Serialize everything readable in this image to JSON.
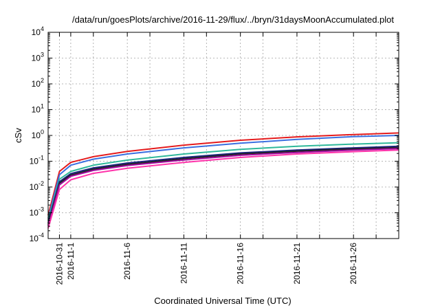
{
  "chart_data": {
    "type": "line",
    "title": "/data/run/goesPlots/archive/2016-11-29/flux/../bryn/31daysMoonAccumulated.plot",
    "xlabel": "Coordinated Universal Time (UTC)",
    "ylabel": "cSv",
    "y_scale": "log",
    "ylim": [
      0.0001,
      10000
    ],
    "xlim": [
      "2016-10-30",
      "2016-11-30"
    ],
    "grid": true,
    "legend": "none",
    "y_ticks": [
      {
        "base": "10",
        "exp": "-4",
        "value": 0.0001
      },
      {
        "base": "10",
        "exp": "-3",
        "value": 0.001
      },
      {
        "base": "10",
        "exp": "-2",
        "value": 0.01
      },
      {
        "base": "10",
        "exp": "-1",
        "value": 0.1
      },
      {
        "base": "10",
        "exp": "0",
        "value": 1
      },
      {
        "base": "10",
        "exp": "1",
        "value": 10
      },
      {
        "base": "10",
        "exp": "2",
        "value": 100
      },
      {
        "base": "10",
        "exp": "3",
        "value": 1000
      },
      {
        "base": "10",
        "exp": "4",
        "value": 10000
      }
    ],
    "x_ticks": [
      {
        "label": "2016-10-31",
        "date": "2016-10-31"
      },
      {
        "label": "2016-11-1",
        "date": "2016-11-01"
      },
      {
        "label": "2016-11-6",
        "date": "2016-11-06"
      },
      {
        "label": "2016-11-11",
        "date": "2016-11-11"
      },
      {
        "label": "2016-11-16",
        "date": "2016-11-16"
      },
      {
        "label": "2016-11-21",
        "date": "2016-11-21"
      },
      {
        "label": "2016-11-26",
        "date": "2016-11-26"
      }
    ],
    "x_grid_dates": [
      "2016-10-31",
      "2016-11-01",
      "2016-11-03",
      "2016-11-06",
      "2016-11-08",
      "2016-11-11",
      "2016-11-13",
      "2016-11-16",
      "2016-11-18",
      "2016-11-21",
      "2016-11-23",
      "2016-11-26",
      "2016-11-28"
    ],
    "x": [
      "2016-10-30",
      "2016-10-31",
      "2016-11-01",
      "2016-11-03",
      "2016-11-06",
      "2016-11-11",
      "2016-11-16",
      "2016-11-21",
      "2016-11-26",
      "2016-11-30"
    ],
    "series": [
      {
        "color": "#e41a1c",
        "values": [
          0.0008,
          0.04,
          0.09,
          0.15,
          0.24,
          0.42,
          0.65,
          0.88,
          1.08,
          1.25
        ]
      },
      {
        "color": "#3a6fe0",
        "values": [
          0.0006,
          0.03,
          0.07,
          0.12,
          0.19,
          0.33,
          0.5,
          0.7,
          0.9,
          1.0
        ]
      },
      {
        "color": "#2eb89a",
        "values": [
          0.0005,
          0.02,
          0.04,
          0.07,
          0.11,
          0.19,
          0.29,
          0.38,
          0.46,
          0.52
        ]
      },
      {
        "color": "#1a237e",
        "values": [
          0.0004,
          0.016,
          0.033,
          0.055,
          0.085,
          0.14,
          0.21,
          0.27,
          0.33,
          0.38
        ]
      },
      {
        "color": "#222222",
        "values": [
          0.00035,
          0.014,
          0.029,
          0.049,
          0.076,
          0.125,
          0.19,
          0.245,
          0.3,
          0.34
        ]
      },
      {
        "color": "#9e0b9e",
        "values": [
          0.0003,
          0.012,
          0.026,
          0.044,
          0.068,
          0.112,
          0.17,
          0.22,
          0.27,
          0.31
        ]
      },
      {
        "color": "#ff33aa",
        "values": [
          0.00025,
          0.008,
          0.019,
          0.034,
          0.053,
          0.09,
          0.14,
          0.19,
          0.235,
          0.27
        ]
      }
    ]
  }
}
